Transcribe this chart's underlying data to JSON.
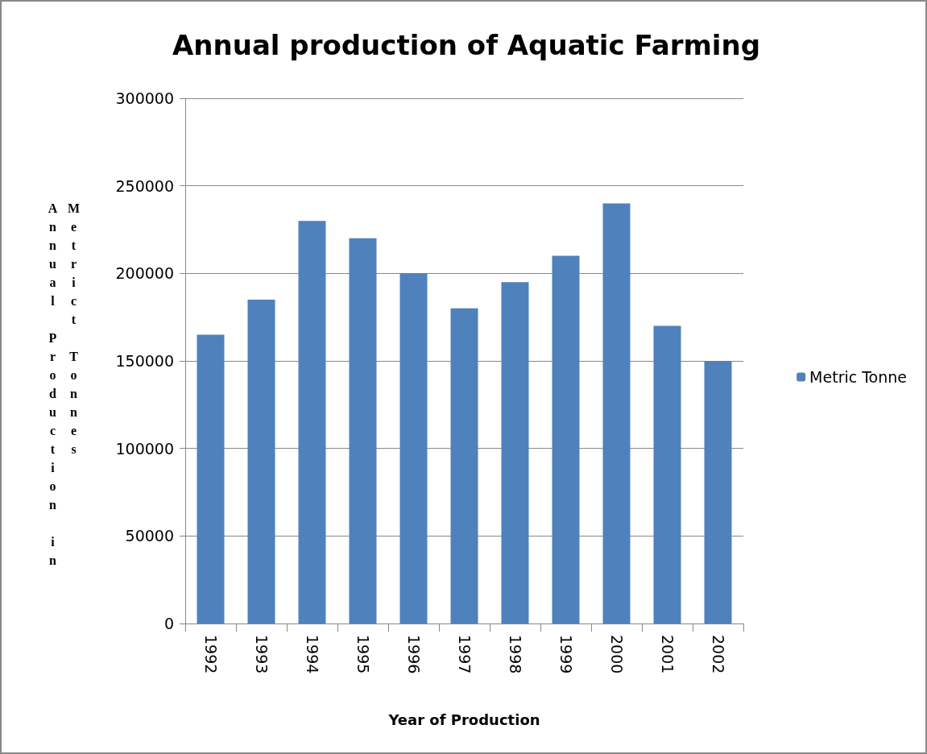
{
  "chart_data": {
    "type": "bar",
    "title": "Annual production of Aquatic Farming",
    "xlabel": "Year of Production",
    "ylabel": "Annual Production in Metrict Tonnes",
    "categories": [
      "1992",
      "1993",
      "1994",
      "1995",
      "1996",
      "1997",
      "1998",
      "1999",
      "2000",
      "2001",
      "2002"
    ],
    "series": [
      {
        "name": "Metric Tonne",
        "color": "#4f81bd",
        "values": [
          165000,
          185000,
          230000,
          220000,
          200000,
          180000,
          195000,
          210000,
          240000,
          170000,
          150000
        ]
      }
    ],
    "ylim": [
      0,
      300000
    ],
    "yticks": [
      0,
      50000,
      100000,
      150000,
      200000,
      250000,
      300000
    ],
    "grid": "y",
    "legend": "right"
  }
}
